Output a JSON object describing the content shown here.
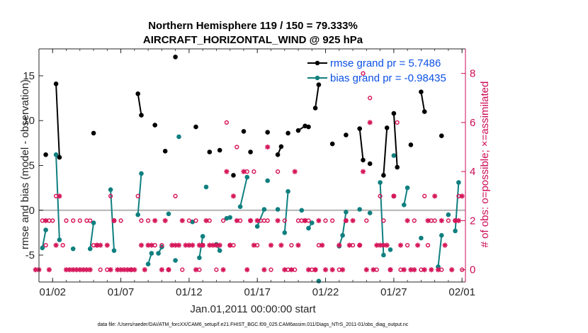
{
  "chart_data": {
    "type": "line",
    "title_line1": "Northern Hemisphere 119 / 150 = 79.333%",
    "title_line2": "AIRCRAFT_HORIZONTAL_WIND @ 925 hPa",
    "xlabel": "Jan.01,2011 00:00:00 start",
    "ylabel": "rmse and bias (model - observation)",
    "y2label": "# of obs: o=possible; ×=assimilated",
    "footnote": "data file: /Users/raeder/DAI/ATM_forcXX/CAM6_setup/f.e21.FHIST_BGC.f09_025.CAM6assim.011/Diags_NTrS_2011-01/obs_diag_output.nc",
    "xlim": [
      0.5,
      31.75
    ],
    "ylim": [
      -8,
      18
    ],
    "y2lim": [
      -0.5,
      9
    ],
    "x_ticks": [
      1.5,
      6.5,
      11.5,
      16.5,
      21.5,
      26.5,
      31.5
    ],
    "x_tick_labels": [
      "01/02",
      "01/07",
      "01/12",
      "01/17",
      "01/22",
      "01/27",
      "02/01"
    ],
    "y_ticks": [
      -5,
      0,
      5,
      10,
      15
    ],
    "y_tick_labels": [
      "-5",
      "0",
      "5",
      "10",
      "15"
    ],
    "y2_ticks": [
      0,
      2,
      4,
      6,
      8
    ],
    "y2_tick_labels": [
      "0",
      "2",
      "4",
      "6",
      "8"
    ],
    "grid": false,
    "zero_line": true,
    "legend_position": "top-right",
    "colors": {
      "rmse": "#000000",
      "bias": "#0f7f7f",
      "obs": "#d6185b",
      "axis_right": "#cc0a55",
      "zero_line": "#b3b3b3",
      "legend_text": "#0a4fe6"
    },
    "series": [
      {
        "name": "rmse grand pr = 5.7486",
        "key": "rmse",
        "x": [
          1.0,
          null,
          1.75,
          2.0,
          null,
          4.5,
          null,
          7.75,
          8.0,
          null,
          9.0,
          null,
          9.75,
          null,
          10.5,
          null,
          12.0,
          null,
          13.0,
          null,
          13.75,
          null,
          14.75,
          null,
          15.5,
          null,
          16.0,
          null,
          17.25,
          null,
          18.0,
          18.25,
          null,
          18.75,
          null,
          19.5,
          20.0,
          20.25,
          null,
          20.75,
          21.0,
          null,
          22.0,
          null,
          23.0,
          null,
          24.0,
          24.25,
          null,
          24.75,
          null,
          25.75,
          26.0,
          null,
          26.5,
          26.75,
          null,
          27.75,
          null,
          28.5,
          28.75,
          null,
          30.0
        ]
      },
      {
        "name": "bias grand pr = -0.98435",
        "key": "bias",
        "x": [
          0.75,
          1.0,
          null,
          1.75,
          2.0,
          null,
          3.0,
          null,
          4.25,
          4.5,
          null,
          5.75,
          6.0,
          null,
          7.75,
          8.0,
          null,
          8.5,
          8.75,
          null,
          9.25,
          9.5,
          null,
          10.0,
          null,
          10.5,
          null,
          10.75,
          null,
          11.75,
          null,
          12.25,
          12.5,
          null,
          12.75,
          null,
          13.5,
          13.75,
          null,
          14.25,
          14.5,
          null,
          15.25,
          15.75,
          null,
          16.5,
          17.0,
          null,
          17.25,
          null,
          18.0,
          null,
          18.5,
          18.75,
          null,
          19.75,
          null,
          20.25,
          20.5,
          null,
          21.0,
          null,
          22.5,
          22.75,
          23.0,
          null,
          24.0,
          null,
          24.75,
          null,
          25.5,
          25.75,
          null,
          26.25,
          null,
          26.5,
          null,
          27.25,
          27.5,
          null,
          28.5,
          null,
          29.75,
          30.0,
          null,
          30.5,
          null,
          31.0,
          31.25
        ]
      }
    ],
    "rmse_y": [
      6.2,
      null,
      14.1,
      5.9,
      null,
      8.6,
      null,
      13.0,
      10.6,
      null,
      9.5,
      null,
      6.6,
      null,
      17.1,
      null,
      9.3,
      null,
      6.5,
      null,
      6.7,
      null,
      3.9,
      null,
      8.8,
      null,
      6.5,
      null,
      8.7,
      null,
      6.2,
      7.1,
      null,
      8.6,
      null,
      8.9,
      9.4,
      9.3,
      null,
      11.4,
      14.0,
      null,
      7.4,
      null,
      8.4,
      null,
      9.1,
      5.6,
      null,
      5.2,
      null,
      3.9,
      9.2,
      null,
      10.8,
      4.8,
      null,
      7.3,
      null,
      13.2,
      11.0,
      null,
      8.3
    ],
    "bias_y": [
      -4.2,
      -2.2,
      null,
      6.2,
      -3.3,
      null,
      -4.3,
      null,
      -4.3,
      -1.4,
      null,
      2.3,
      -4.5,
      null,
      -0.5,
      4.1,
      null,
      -6.0,
      -4.8,
      null,
      -4.8,
      -4.1,
      null,
      -0.4,
      null,
      -5.6,
      null,
      8.2,
      null,
      -1.3,
      null,
      -5.3,
      -2.9,
      null,
      2.6,
      null,
      -3.8,
      -4.5,
      null,
      -0.9,
      -0.8,
      null,
      0.4,
      3.7,
      null,
      -1.8,
      0.1,
      null,
      3.3,
      null,
      0.1,
      null,
      -2.5,
      2.1,
      null,
      0.0,
      null,
      -2.0,
      -1.4,
      null,
      -7.9,
      null,
      -4.0,
      -2.8,
      -0.2,
      null,
      0.1,
      null,
      -0.3,
      null,
      3.1,
      -5.0,
      null,
      -4.4,
      null,
      6.1,
      null,
      0.6,
      2.5,
      null,
      -3.1,
      null,
      -6.3,
      -2.8,
      null,
      -0.5,
      null,
      -2.3,
      3.1
    ],
    "obs_possible": {
      "x": [
        0.75,
        1.0,
        1.25,
        1.5,
        1.75,
        2.25,
        2.5,
        3.0,
        3.5,
        4.0,
        4.25,
        4.5,
        4.75,
        5.0,
        5.5,
        5.75,
        6.0,
        6.5,
        7.25,
        7.75,
        8.0,
        8.5,
        9.0,
        9.5,
        10.0,
        10.5,
        11.0,
        11.5,
        12.0,
        12.25,
        12.5,
        13.0,
        13.5,
        14.0,
        14.25,
        14.5,
        14.75,
        15.0,
        15.25,
        15.75,
        16.0,
        16.25,
        16.5,
        16.75,
        17.0,
        17.25,
        17.5,
        18.0,
        18.5,
        18.75,
        19.0,
        19.25,
        19.5,
        19.75,
        20.0,
        20.25,
        20.5,
        20.75,
        21.0,
        21.5,
        22.0,
        22.5,
        23.0,
        23.5,
        24.0,
        24.25,
        24.5,
        24.75,
        25.25,
        25.5,
        25.75,
        26.25,
        26.5,
        26.75,
        27.0,
        27.5,
        28.0,
        28.5,
        28.75,
        29.0,
        29.25,
        29.5,
        30.0,
        30.5,
        31.0,
        31.25,
        31.5
      ],
      "y": [
        2,
        1,
        2,
        2,
        3,
        1,
        2,
        2,
        2,
        2,
        2,
        1,
        1,
        0,
        0,
        3,
        2,
        2,
        0,
        3,
        2,
        2,
        1,
        1,
        0,
        3,
        0,
        2,
        2,
        0,
        1,
        2,
        0,
        2,
        6,
        1,
        1,
        5,
        2,
        4,
        2,
        4,
        1,
        2,
        2,
        2,
        0,
        4,
        2,
        0,
        1,
        0,
        2,
        2,
        2,
        2,
        0,
        0,
        1,
        2,
        2,
        0,
        2,
        1,
        1,
        8,
        2,
        7,
        0,
        3,
        2,
        0,
        3,
        6,
        0,
        1,
        2,
        0,
        3,
        1,
        2,
        2,
        0,
        2,
        2,
        3,
        0
      ]
    },
    "obs_assimilated": {
      "x": [
        0.25,
        0.5,
        1.0,
        1.25,
        1.75,
        2.0,
        2.5,
        2.75,
        3.0,
        3.25,
        3.5,
        3.75,
        4.0,
        4.25,
        4.75,
        5.0,
        5.5,
        5.75,
        6.0,
        6.25,
        6.5,
        6.75,
        7.0,
        7.25,
        7.5,
        8.0,
        8.25,
        8.5,
        8.75,
        9.0,
        9.5,
        9.75,
        10.0,
        10.25,
        10.5,
        10.75,
        11.0,
        11.25,
        11.5,
        11.75,
        12.0,
        12.25,
        12.5,
        12.75,
        13.0,
        13.25,
        13.5,
        13.75,
        14.0,
        14.25,
        14.5,
        14.75,
        15.0,
        15.5,
        15.75,
        16.0,
        16.25,
        16.5,
        17.0,
        17.25,
        17.5,
        18.0,
        18.25,
        18.5,
        19.0,
        19.25,
        19.5,
        20.0,
        20.25,
        20.75,
        21.0,
        21.25,
        21.5,
        22.0,
        22.5,
        22.75,
        23.0,
        23.25,
        23.5,
        24.0,
        24.25,
        24.5,
        24.75,
        25.0,
        25.25,
        25.5,
        25.75,
        26.0,
        26.25,
        26.5,
        27.0,
        27.25,
        27.5,
        27.75,
        28.0,
        28.25,
        28.75,
        29.0,
        29.25,
        29.5,
        29.75,
        30.0,
        30.25,
        30.75,
        31.0,
        31.25,
        31.5
      ],
      "y": [
        0,
        0,
        2,
        0,
        1,
        3,
        0,
        0,
        0,
        0,
        0,
        0,
        0,
        0,
        1,
        1,
        1,
        0,
        2,
        0,
        0,
        0,
        0,
        0,
        0,
        1,
        0,
        1,
        1,
        2,
        0,
        2,
        0,
        1,
        1,
        1,
        2,
        1,
        1,
        1,
        0,
        1,
        1,
        2,
        1,
        1,
        1,
        1,
        0,
        4,
        1,
        3,
        2,
        4,
        0,
        2,
        1,
        2,
        0,
        5,
        1,
        2,
        1,
        0,
        0,
        4,
        1,
        2,
        0,
        0,
        2,
        1,
        0,
        0,
        1,
        0,
        2,
        1,
        2,
        1,
        4,
        0,
        6,
        0,
        1,
        1,
        1,
        1,
        0,
        3,
        1,
        0,
        2,
        0,
        0,
        1,
        0,
        2,
        0,
        3,
        0,
        2,
        1,
        0,
        2,
        2,
        3
      ]
    }
  }
}
